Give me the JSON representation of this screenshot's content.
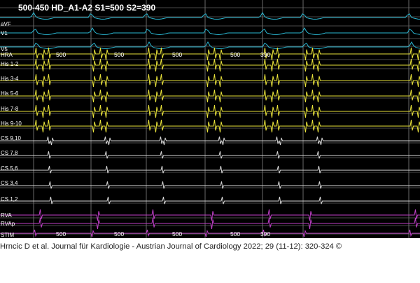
{
  "header": {
    "title": "500-450 HD_A1-A2 S1=500 S2=390"
  },
  "channels": [
    {
      "label": "aVF",
      "color": "#2ab7d2",
      "kind": "surface",
      "bind": "aVF"
    },
    {
      "label": "V1",
      "color": "#2ab7d2",
      "kind": "surface",
      "bind": "V1"
    },
    {
      "label": "V5",
      "color": "#2ab7d2",
      "kind": "surface",
      "bind": "V5"
    },
    {
      "label": "HRA",
      "color": "#e8e23a",
      "kind": "his",
      "bind": "HRA"
    },
    {
      "label": "His 1-2",
      "color": "#e8e23a",
      "kind": "his",
      "bind": "His12"
    },
    {
      "label": "His 3-4",
      "color": "#e8e23a",
      "kind": "his",
      "bind": "His34"
    },
    {
      "label": "His 5-6",
      "color": "#e8e23a",
      "kind": "his",
      "bind": "His56"
    },
    {
      "label": "His 7-8",
      "color": "#e8e23a",
      "kind": "his",
      "bind": "His78"
    },
    {
      "label": "His 9-10",
      "color": "#e8e23a",
      "kind": "his",
      "bind": "His910"
    },
    {
      "label": "CS 9,10",
      "color": "#d8d8d8",
      "kind": "cs",
      "bind": "CS910"
    },
    {
      "label": "CS 7,8",
      "color": "#d8d8d8",
      "kind": "cs",
      "bind": "CS78"
    },
    {
      "label": "CS 5,6",
      "color": "#d8d8d8",
      "kind": "cs",
      "bind": "CS56"
    },
    {
      "label": "CS 3,4",
      "color": "#d8d8d8",
      "kind": "cs",
      "bind": "CS34"
    },
    {
      "label": "CS 1,2",
      "color": "#d8d8d8",
      "kind": "cs",
      "bind": "CS12"
    },
    {
      "label": "RVA",
      "color": "#c040c8",
      "kind": "rv",
      "bind": "RVA"
    },
    {
      "label": "RVAp",
      "color": "#c040c8",
      "kind": "rv",
      "bind": "RVAp"
    },
    {
      "label": "STIM",
      "color": "#c040c8",
      "kind": "stim",
      "bind": "STIM"
    }
  ],
  "intervals_top": [
    "500",
    "500",
    "500",
    "500",
    "390"
  ],
  "intervals_bottom": [
    "500",
    "500",
    "500",
    "500",
    "390"
  ],
  "caption": "Hrncic D et al. Journal für Kardiologie - Austrian Journal of Cardiology 2022; 29 (11-12): 320-324 ©",
  "colors": {
    "background": "#000000",
    "gridline": "#4a4a4a",
    "marker": "#ffffff"
  }
}
